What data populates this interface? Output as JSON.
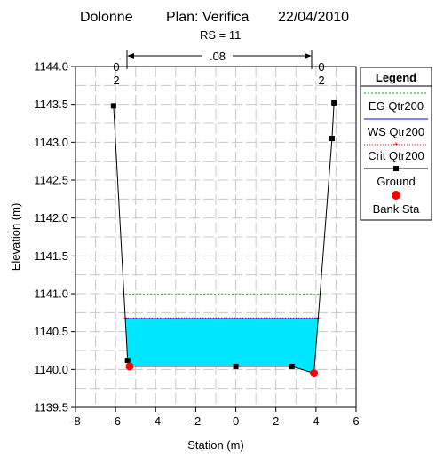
{
  "header": {
    "river": "Dolonne",
    "plan": "Plan: Verifica",
    "date": "22/04/2010",
    "rs": "RS = 11"
  },
  "chart_data": {
    "type": "line",
    "xlabel": "Station (m)",
    "ylabel": "Elevation (m)",
    "xlim": [
      -8,
      6
    ],
    "ylim": [
      1139.5,
      1144.0
    ],
    "x_ticks": [
      "-8",
      "-6",
      "-4",
      "-2",
      "0",
      "2",
      "4",
      "6"
    ],
    "y_ticks": [
      "1139.5",
      "1140.0",
      "1140.5",
      "1141.0",
      "1141.5",
      "1142.0",
      "1142.5",
      "1143.0",
      "1143.5",
      "1144.0"
    ],
    "grid": true,
    "legend_position": "right",
    "series": [
      {
        "name": "Ground",
        "color": "#000000",
        "points": [
          [
            -6.1,
            1143.48
          ],
          [
            -5.4,
            1140.12
          ],
          [
            -5.3,
            1140.04
          ],
          [
            0.0,
            1140.04
          ],
          [
            2.8,
            1140.04
          ],
          [
            3.9,
            1139.95
          ],
          [
            4.8,
            1143.05
          ],
          [
            4.9,
            1143.52
          ]
        ]
      }
    ],
    "water_surface": {
      "name": "WS Qtr200",
      "elevation": 1140.67,
      "color": "#0000ff",
      "fill": "#00e6ff"
    },
    "energy_grade": {
      "name": "EG Qtr200",
      "elevation": 1140.99,
      "color": "#00a000"
    },
    "critical": {
      "name": "Crit Qtr200",
      "elevation": 1140.68,
      "color": "#ff0000"
    },
    "bank_stations": {
      "name": "Bank Sta",
      "points": [
        [
          -5.3,
          1140.04
        ],
        [
          3.9,
          1139.95
        ]
      ],
      "color": "#ff0000"
    },
    "manning": {
      "left": "0\n2",
      "center": ".08",
      "right": "0\n2"
    },
    "legend": {
      "title": "Legend",
      "entries": [
        "EG Qtr200",
        "WS Qtr200",
        "Crit Qtr200",
        "Ground",
        "Bank Sta"
      ]
    }
  }
}
